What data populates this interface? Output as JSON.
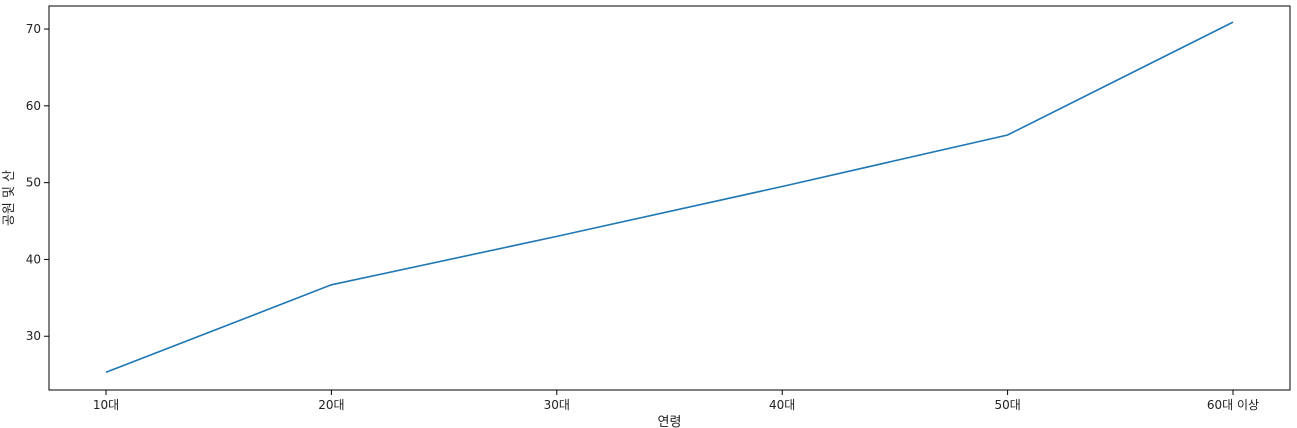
{
  "chart_data": {
    "type": "line",
    "title": "",
    "xlabel": "연령",
    "ylabel": "공원 및 산",
    "categories": [
      "10대",
      "20대",
      "30대",
      "40대",
      "50대",
      "60대 이상"
    ],
    "series": [
      {
        "values": [
          25.3,
          36.7,
          43.0,
          49.5,
          56.2,
          70.9
        ]
      }
    ],
    "ylim": [
      23.0,
      73.0
    ],
    "yticks": [
      30,
      40,
      50,
      60,
      70
    ],
    "grid": false,
    "line_color": "#1f77b4"
  }
}
